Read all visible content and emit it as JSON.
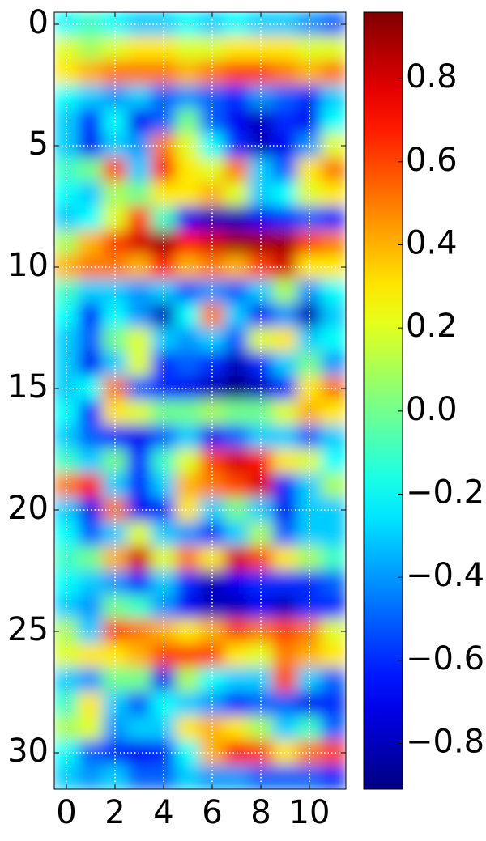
{
  "chart_data": {
    "type": "heatmap",
    "colormap": "jet",
    "grid": true,
    "grid_color": "#ffffff",
    "yaxis_inverted": true,
    "xlim": [
      -0.5,
      11.5
    ],
    "ylim": [
      -0.5,
      31.5
    ],
    "xticks": [
      0,
      2,
      4,
      6,
      8,
      10
    ],
    "yticks": [
      0,
      5,
      10,
      15,
      20,
      25,
      30
    ],
    "clim": [
      -0.91,
      0.96
    ],
    "cticks": [
      {
        "value": -0.8,
        "label": "−0.8"
      },
      {
        "value": -0.6,
        "label": "−0.6"
      },
      {
        "value": -0.4,
        "label": "−0.4"
      },
      {
        "value": -0.2,
        "label": "−0.2"
      },
      {
        "value": 0,
        "label": "0.0"
      },
      0.2,
      0.4,
      0.6,
      0.8
    ],
    "values": [
      [
        -0.2,
        -0.1,
        -0.2,
        -0.3,
        -0.3,
        -0.2,
        -0.3,
        -0.2,
        -0.3,
        -0.3,
        -0.4,
        -0.5
      ],
      [
        0.2,
        0.1,
        0.2,
        0.3,
        0.3,
        0.2,
        0.2,
        0.3,
        0.3,
        0.3,
        0.2,
        0.2
      ],
      [
        0.3,
        0.4,
        0.5,
        0.5,
        0.5,
        0.4,
        0.5,
        0.6,
        0.6,
        0.5,
        0.4,
        0.5
      ],
      [
        -0.2,
        -0.3,
        -0.4,
        -0.3,
        -0.5,
        -0.4,
        -0.5,
        -0.6,
        -0.4,
        -0.5,
        -0.6,
        -0.3
      ],
      [
        -0.3,
        -0.6,
        -0.2,
        -0.7,
        -0.5,
        0.0,
        -0.5,
        -0.7,
        -0.8,
        -0.6,
        -0.7,
        -0.2
      ],
      [
        -0.3,
        -0.7,
        -0.3,
        -0.4,
        0.5,
        0.2,
        -0.2,
        -0.6,
        -0.8,
        -0.7,
        -0.4,
        0.2
      ],
      [
        -0.1,
        0.0,
        0.6,
        -0.3,
        0.7,
        0.3,
        0.2,
        0.5,
        -0.3,
        -0.5,
        0.3,
        0.5
      ],
      [
        -0.2,
        -0.3,
        0.1,
        0.0,
        0.3,
        0.3,
        0.4,
        0.2,
        -0.3,
        -0.2,
        0.2,
        0.3
      ],
      [
        -0.3,
        -0.2,
        0.2,
        0.6,
        -0.1,
        -0.7,
        -0.8,
        -0.8,
        -0.7,
        -0.6,
        -0.5,
        -0.6
      ],
      [
        0.1,
        0.4,
        0.6,
        0.8,
        0.9,
        0.7,
        0.8,
        0.9,
        0.9,
        0.9,
        0.6,
        0.5
      ],
      [
        0.4,
        0.5,
        0.5,
        0.4,
        0.7,
        0.4,
        0.5,
        0.4,
        0.6,
        0.8,
        0.3,
        0.3
      ],
      [
        -0.1,
        -0.3,
        -0.3,
        -0.4,
        -0.3,
        -0.5,
        -0.4,
        -0.5,
        -0.3,
        0.1,
        -0.4,
        -0.2
      ],
      [
        -0.2,
        -0.6,
        -0.2,
        -0.4,
        -0.8,
        -0.2,
        0.5,
        -0.3,
        -0.7,
        -0.4,
        -0.8,
        -0.3
      ],
      [
        -0.3,
        -0.5,
        0.0,
        0.2,
        -0.3,
        -0.4,
        -0.3,
        -0.5,
        0.2,
        0.3,
        -0.3,
        -0.2
      ],
      [
        -0.3,
        -0.7,
        -0.3,
        0.2,
        -0.6,
        -0.5,
        -0.6,
        -0.8,
        -0.6,
        -0.3,
        0.0,
        -0.4
      ],
      [
        -0.3,
        -0.2,
        0.5,
        -0.5,
        -0.6,
        -0.7,
        -0.8,
        -0.9,
        -0.8,
        -0.6,
        0.3,
        0.5
      ],
      [
        -0.2,
        -0.6,
        0.3,
        0.2,
        0.0,
        0.0,
        0.1,
        0.0,
        0.0,
        0.2,
        0.4,
        0.3
      ],
      [
        -0.3,
        -0.5,
        -0.6,
        -0.7,
        -0.5,
        -0.3,
        -0.7,
        -0.5,
        -0.3,
        -0.3,
        -0.5,
        -0.3
      ],
      [
        -0.1,
        -0.3,
        0.0,
        -0.6,
        -0.1,
        0.2,
        0.6,
        0.8,
        0.7,
        0.3,
        0.2,
        -0.2
      ],
      [
        0.5,
        0.7,
        -0.3,
        -0.6,
        -0.3,
        0.4,
        0.5,
        0.6,
        0.8,
        -0.6,
        -0.3,
        0.1
      ],
      [
        -0.3,
        -0.7,
        0.5,
        -0.7,
        -0.6,
        0.3,
        -0.3,
        0.0,
        -0.3,
        -0.7,
        -0.3,
        -0.3
      ],
      [
        -0.2,
        -0.5,
        -0.3,
        0.2,
        -0.3,
        -0.4,
        -0.6,
        -0.3,
        0.1,
        -0.5,
        -0.3,
        -0.3
      ],
      [
        -0.1,
        0.0,
        0.4,
        0.8,
        0.2,
        0.5,
        0.3,
        0.8,
        0.6,
        0.3,
        0.1,
        -0.1
      ],
      [
        -0.2,
        -0.3,
        -0.4,
        -0.6,
        -0.3,
        -0.6,
        -0.8,
        -0.7,
        -0.6,
        -0.6,
        -0.6,
        -0.5
      ],
      [
        -0.3,
        -0.4,
        0.0,
        -0.1,
        -0.4,
        -0.7,
        -0.8,
        -0.8,
        -0.7,
        -0.8,
        -0.6,
        -0.6
      ],
      [
        0.1,
        -0.3,
        0.6,
        0.5,
        0.4,
        0.3,
        0.4,
        0.6,
        0.5,
        0.6,
        0.5,
        0.2
      ],
      [
        0.2,
        0.3,
        0.3,
        0.4,
        0.6,
        0.6,
        0.6,
        0.3,
        0.2,
        0.5,
        0.4,
        0.3
      ],
      [
        -0.3,
        -0.4,
        0.0,
        0.0,
        -0.7,
        0.1,
        -0.2,
        -0.3,
        -0.3,
        0.6,
        -0.3,
        -0.5
      ],
      [
        -0.1,
        0.3,
        -0.3,
        -0.5,
        -0.2,
        -0.3,
        -0.4,
        -0.6,
        -0.5,
        -0.5,
        -0.7,
        -0.6
      ],
      [
        0.1,
        0.2,
        -0.4,
        -0.3,
        -0.3,
        0.3,
        0.4,
        0.3,
        0.1,
        -0.3,
        -0.1,
        -0.5
      ],
      [
        -0.2,
        -0.5,
        -0.6,
        -0.7,
        -0.6,
        -0.2,
        0.4,
        0.7,
        0.6,
        0.3,
        0.5,
        0.6
      ],
      [
        -0.3,
        -0.4,
        -0.3,
        -0.5,
        -0.5,
        -0.3,
        -0.4,
        -0.4,
        -0.5,
        -0.5,
        -0.5,
        -0.6
      ]
    ]
  }
}
